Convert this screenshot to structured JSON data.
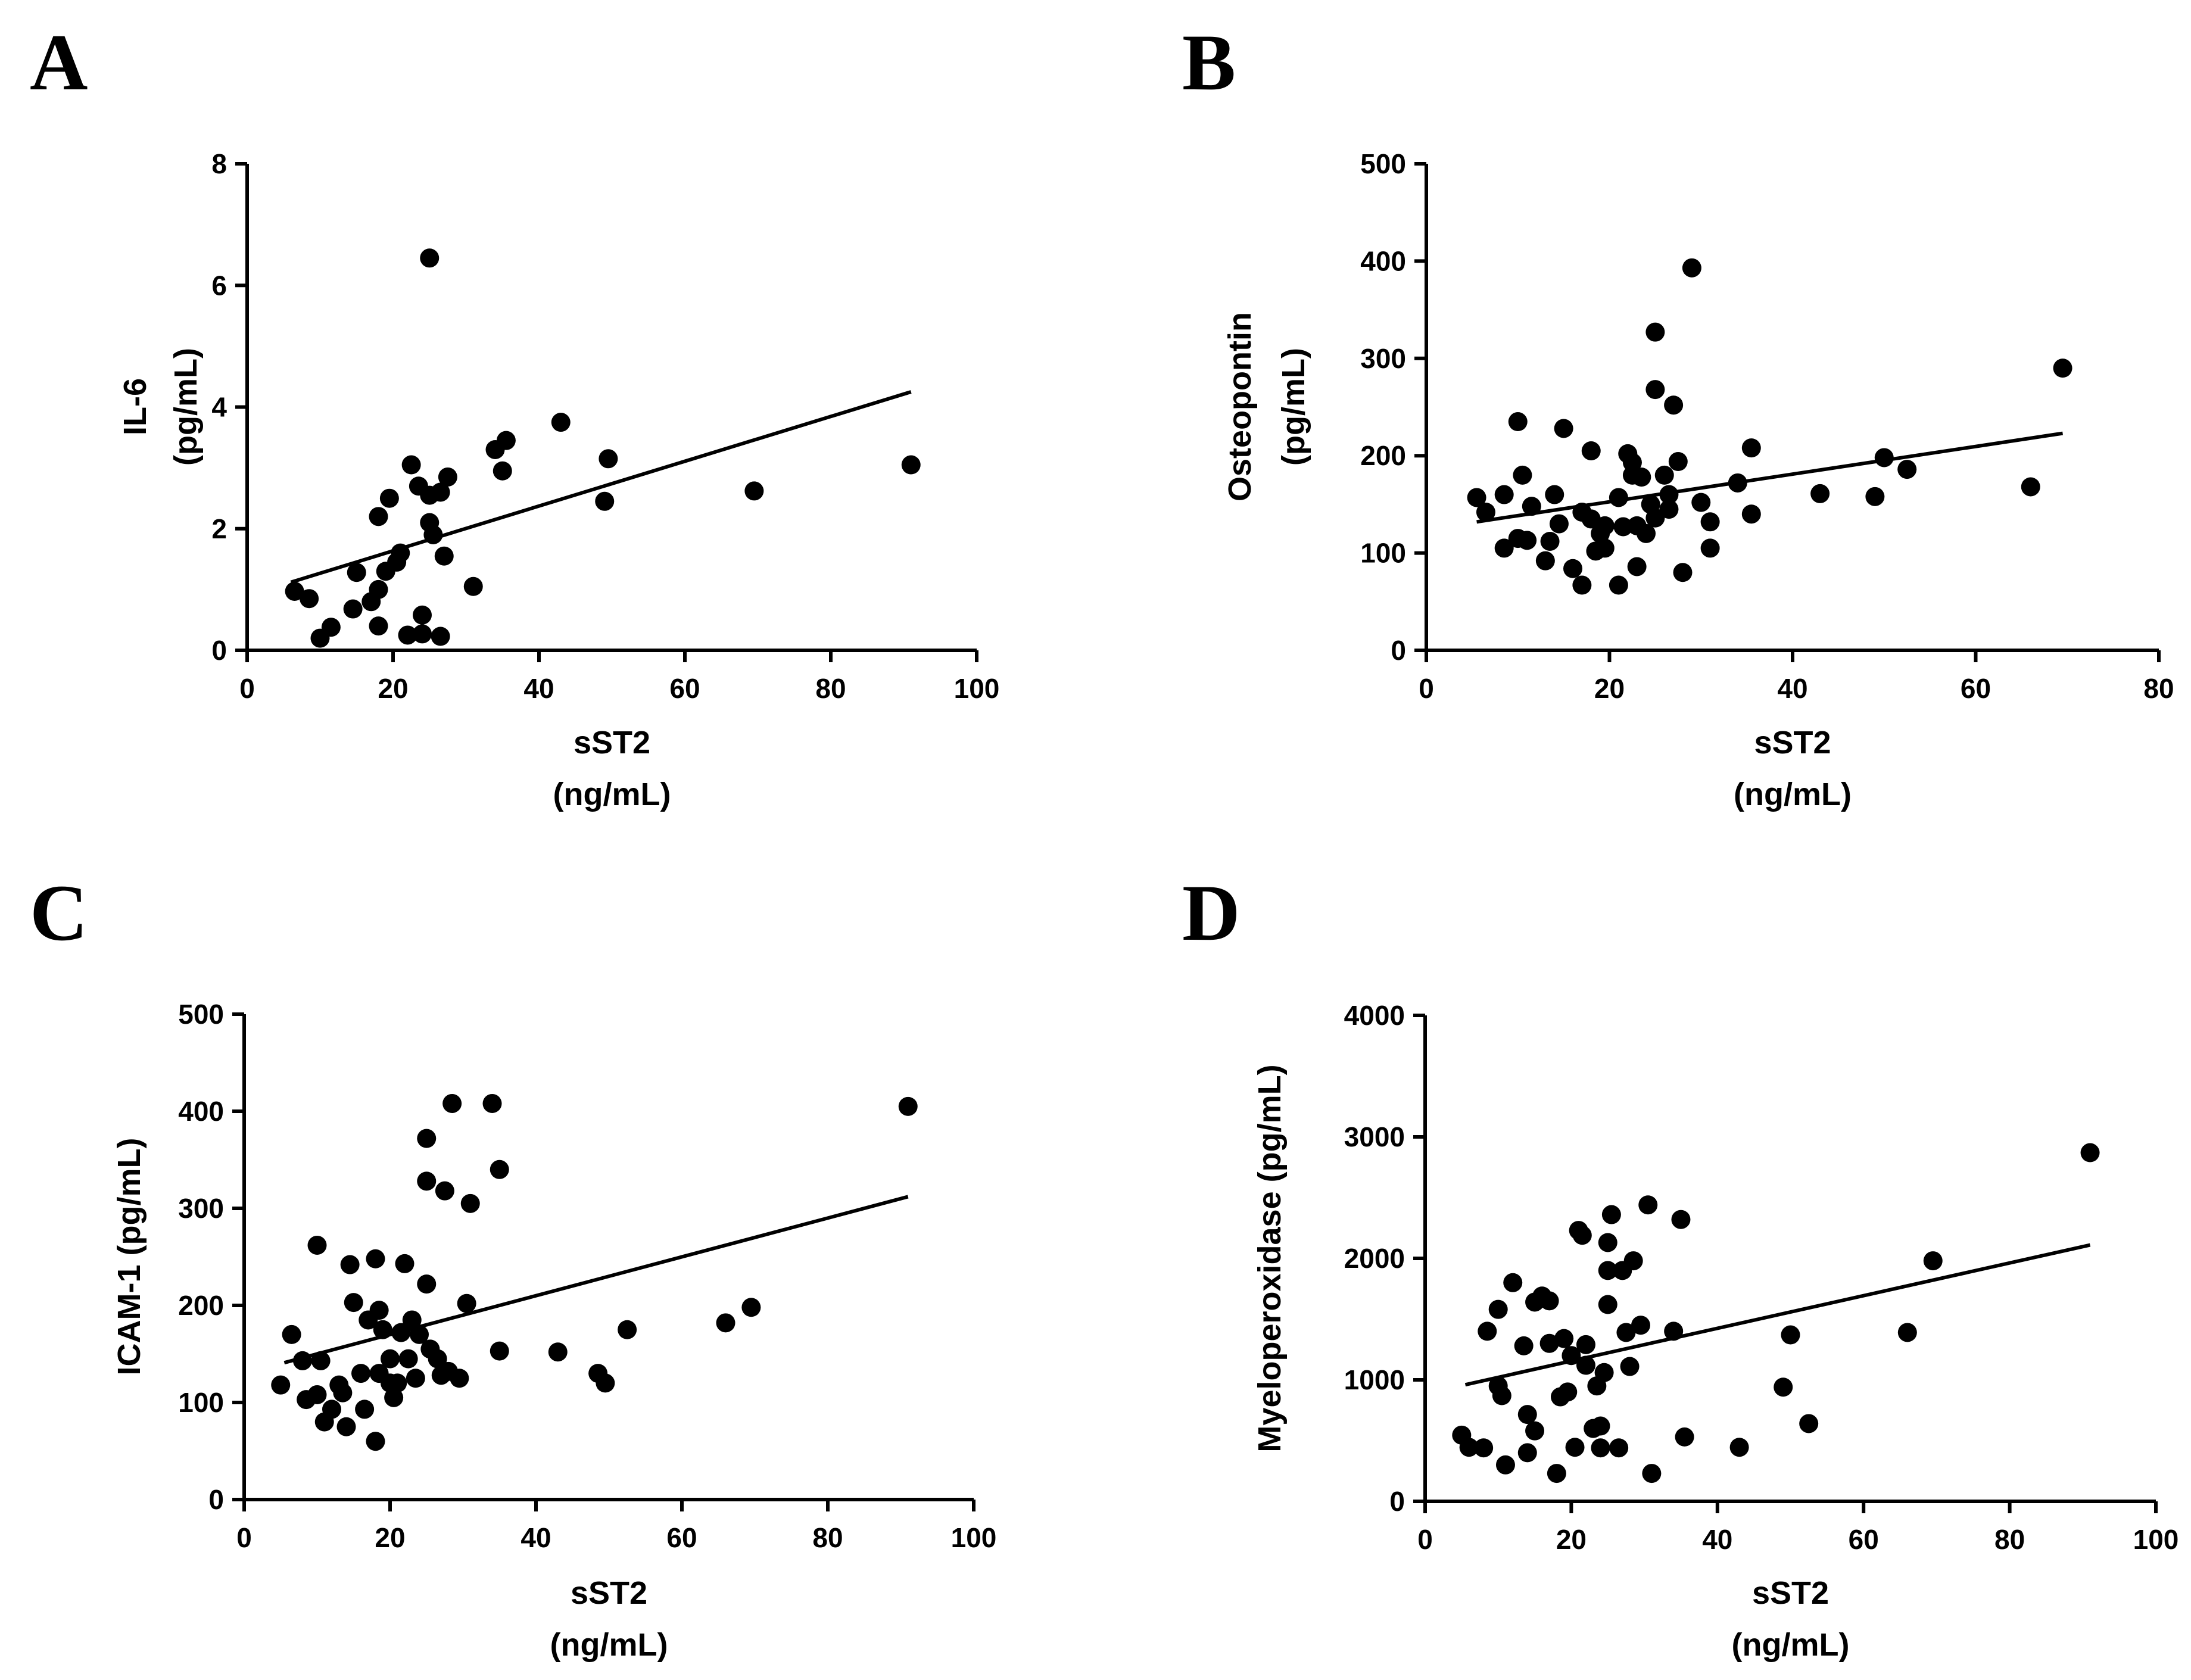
{
  "chart_data": [
    {
      "panel": "A",
      "type": "scatter",
      "xlabel": [
        "sST2",
        "(ng/mL)"
      ],
      "ylabel": [
        "IL-6",
        "(pg/mL)"
      ],
      "xlim": [
        0,
        100
      ],
      "ylim": [
        0,
        8
      ],
      "xticks": [
        0,
        20,
        40,
        60,
        80,
        100
      ],
      "yticks": [
        0,
        2,
        4,
        6,
        8
      ],
      "fit": {
        "x": [
          6,
          91
        ],
        "y": [
          1.12,
          4.25
        ]
      },
      "points": [
        [
          6.5,
          0.97
        ],
        [
          8.5,
          0.85
        ],
        [
          10,
          0.2
        ],
        [
          11.5,
          0.38
        ],
        [
          14.5,
          0.68
        ],
        [
          15,
          1.28
        ],
        [
          17,
          0.8
        ],
        [
          18,
          1.0
        ],
        [
          18,
          0.4
        ],
        [
          18,
          2.2
        ],
        [
          19,
          1.3
        ],
        [
          19.5,
          2.5
        ],
        [
          20.5,
          1.45
        ],
        [
          21,
          1.6
        ],
        [
          22,
          0.25
        ],
        [
          22.5,
          3.05
        ],
        [
          23.5,
          2.7
        ],
        [
          24,
          0.58
        ],
        [
          24,
          0.27
        ],
        [
          25,
          2.1
        ],
        [
          25,
          2.55
        ],
        [
          25,
          6.45
        ],
        [
          25.5,
          1.9
        ],
        [
          26.5,
          0.23
        ],
        [
          26.5,
          2.6
        ],
        [
          27,
          1.55
        ],
        [
          27.5,
          2.85
        ],
        [
          31,
          1.05
        ],
        [
          34,
          3.3
        ],
        [
          35,
          2.95
        ],
        [
          35.5,
          3.45
        ],
        [
          43,
          3.75
        ],
        [
          49,
          2.45
        ],
        [
          49.5,
          3.15
        ],
        [
          69.5,
          2.62
        ],
        [
          91,
          3.05
        ]
      ]
    },
    {
      "panel": "B",
      "type": "scatter",
      "xlabel": [
        "sST2",
        "(ng/mL)"
      ],
      "ylabel": [
        "Osteopontin",
        "(pg/mL)"
      ],
      "xlim": [
        0,
        80
      ],
      "ylim": [
        0,
        500
      ],
      "xticks": [
        0,
        20,
        40,
        60,
        80
      ],
      "yticks": [
        0,
        100,
        200,
        300,
        400,
        500
      ],
      "fit": {
        "x": [
          5.5,
          69.5
        ],
        "y": [
          132,
          223
        ]
      },
      "points": [
        [
          5.5,
          157
        ],
        [
          6.5,
          142
        ],
        [
          8.5,
          105
        ],
        [
          8.5,
          160
        ],
        [
          10,
          115
        ],
        [
          10,
          235
        ],
        [
          10.5,
          180
        ],
        [
          11,
          113
        ],
        [
          11.5,
          148
        ],
        [
          13,
          92
        ],
        [
          13.5,
          112
        ],
        [
          14,
          160
        ],
        [
          14.5,
          130
        ],
        [
          15,
          228
        ],
        [
          16,
          84
        ],
        [
          17,
          67
        ],
        [
          17,
          142
        ],
        [
          18,
          135
        ],
        [
          18,
          205
        ],
        [
          18.5,
          102
        ],
        [
          19,
          120
        ],
        [
          19.5,
          105
        ],
        [
          19.5,
          128
        ],
        [
          21,
          157
        ],
        [
          21,
          67
        ],
        [
          21.5,
          127
        ],
        [
          22,
          202
        ],
        [
          22.5,
          180
        ],
        [
          22.5,
          193
        ],
        [
          23,
          86
        ],
        [
          23,
          128
        ],
        [
          23.5,
          178
        ],
        [
          24,
          120
        ],
        [
          24.5,
          150
        ],
        [
          25,
          136
        ],
        [
          25,
          327
        ],
        [
          25,
          268
        ],
        [
          26,
          180
        ],
        [
          26.5,
          160
        ],
        [
          26.5,
          145
        ],
        [
          27,
          252
        ],
        [
          27.5,
          194
        ],
        [
          28,
          80
        ],
        [
          29,
          393
        ],
        [
          30,
          152
        ],
        [
          31,
          105
        ],
        [
          31,
          132
        ],
        [
          34,
          172
        ],
        [
          35.5,
          208
        ],
        [
          35.5,
          140
        ],
        [
          43,
          161
        ],
        [
          49,
          158
        ],
        [
          50,
          198
        ],
        [
          52.5,
          186
        ],
        [
          66,
          168
        ],
        [
          69.5,
          290
        ]
      ]
    },
    {
      "panel": "C",
      "type": "scatter",
      "xlabel": [
        "sST2",
        "(ng/mL)"
      ],
      "ylabel": [
        "ICAM-1 (pg/mL)"
      ],
      "xlim": [
        0,
        100
      ],
      "ylim": [
        0,
        500
      ],
      "xticks": [
        0,
        20,
        40,
        60,
        80,
        100
      ],
      "yticks": [
        0,
        100,
        200,
        300,
        400,
        500
      ],
      "fit": {
        "x": [
          5.5,
          91
        ],
        "y": [
          141,
          312
        ]
      },
      "points": [
        [
          5,
          118
        ],
        [
          6.5,
          170
        ],
        [
          8,
          143
        ],
        [
          8.5,
          103
        ],
        [
          10,
          262
        ],
        [
          10,
          108
        ],
        [
          10.5,
          143
        ],
        [
          11,
          80
        ],
        [
          12,
          93
        ],
        [
          13,
          118
        ],
        [
          13.5,
          110
        ],
        [
          14,
          75
        ],
        [
          14.5,
          242
        ],
        [
          15,
          203
        ],
        [
          16,
          130
        ],
        [
          16.5,
          93
        ],
        [
          17,
          185
        ],
        [
          18,
          248
        ],
        [
          18,
          60
        ],
        [
          18.5,
          195
        ],
        [
          18.5,
          130
        ],
        [
          19,
          175
        ],
        [
          20,
          145
        ],
        [
          20,
          120
        ],
        [
          20.5,
          105
        ],
        [
          21,
          120
        ],
        [
          21.5,
          172
        ],
        [
          22,
          243
        ],
        [
          22.5,
          145
        ],
        [
          23,
          185
        ],
        [
          23.5,
          125
        ],
        [
          24,
          170
        ],
        [
          25,
          222
        ],
        [
          25,
          372
        ],
        [
          25,
          328
        ],
        [
          25.5,
          155
        ],
        [
          26.5,
          145
        ],
        [
          27,
          128
        ],
        [
          27.5,
          318
        ],
        [
          28,
          132
        ],
        [
          28.5,
          408
        ],
        [
          29.5,
          125
        ],
        [
          30.5,
          202
        ],
        [
          31,
          305
        ],
        [
          34,
          408
        ],
        [
          35,
          340
        ],
        [
          35,
          153
        ],
        [
          43,
          152
        ],
        [
          48.5,
          130
        ],
        [
          49.5,
          120
        ],
        [
          52.5,
          175
        ],
        [
          66,
          182
        ],
        [
          69.5,
          198
        ],
        [
          91,
          405
        ]
      ]
    },
    {
      "panel": "D",
      "type": "scatter",
      "xlabel": [
        "sST2",
        "(ng/mL)"
      ],
      "ylabel": [
        "Myeloperoxidase (pg/mL)"
      ],
      "xlim": [
        0,
        100
      ],
      "ylim": [
        0,
        4000
      ],
      "xticks": [
        0,
        20,
        40,
        60,
        80,
        100
      ],
      "yticks": [
        0,
        1000,
        2000,
        3000,
        4000
      ],
      "fit": {
        "x": [
          5.5,
          91
        ],
        "y": [
          960,
          2110
        ]
      },
      "points": [
        [
          5,
          545
        ],
        [
          6,
          445
        ],
        [
          8,
          440
        ],
        [
          8.5,
          1400
        ],
        [
          10,
          1580
        ],
        [
          10,
          950
        ],
        [
          10.5,
          870
        ],
        [
          11,
          300
        ],
        [
          12,
          1800
        ],
        [
          13.5,
          1280
        ],
        [
          14,
          715
        ],
        [
          14,
          400
        ],
        [
          15,
          1640
        ],
        [
          15,
          580
        ],
        [
          16,
          1690
        ],
        [
          17,
          1650
        ],
        [
          17,
          1300
        ],
        [
          18,
          230
        ],
        [
          18.5,
          860
        ],
        [
          19,
          1340
        ],
        [
          19.5,
          900
        ],
        [
          20,
          1200
        ],
        [
          20.5,
          445
        ],
        [
          21,
          2230
        ],
        [
          21.5,
          2190
        ],
        [
          22,
          1120
        ],
        [
          22,
          1290
        ],
        [
          23,
          600
        ],
        [
          23.5,
          950
        ],
        [
          24,
          620
        ],
        [
          24,
          440
        ],
        [
          24.5,
          1060
        ],
        [
          25,
          2130
        ],
        [
          25,
          1620
        ],
        [
          25,
          1900
        ],
        [
          25.5,
          2360
        ],
        [
          26.5,
          440
        ],
        [
          27,
          1900
        ],
        [
          27.5,
          1390
        ],
        [
          28,
          1110
        ],
        [
          28.5,
          1980
        ],
        [
          29.5,
          1450
        ],
        [
          30.5,
          2440
        ],
        [
          31,
          230
        ],
        [
          34,
          1400
        ],
        [
          35,
          2320
        ],
        [
          35.5,
          530
        ],
        [
          43,
          445
        ],
        [
          49,
          940
        ],
        [
          50,
          1370
        ],
        [
          52.5,
          640
        ],
        [
          66,
          1390
        ],
        [
          69.5,
          1980
        ],
        [
          91,
          2870
        ]
      ]
    }
  ],
  "panel_letters": [
    "A",
    "B",
    "C",
    "D"
  ]
}
